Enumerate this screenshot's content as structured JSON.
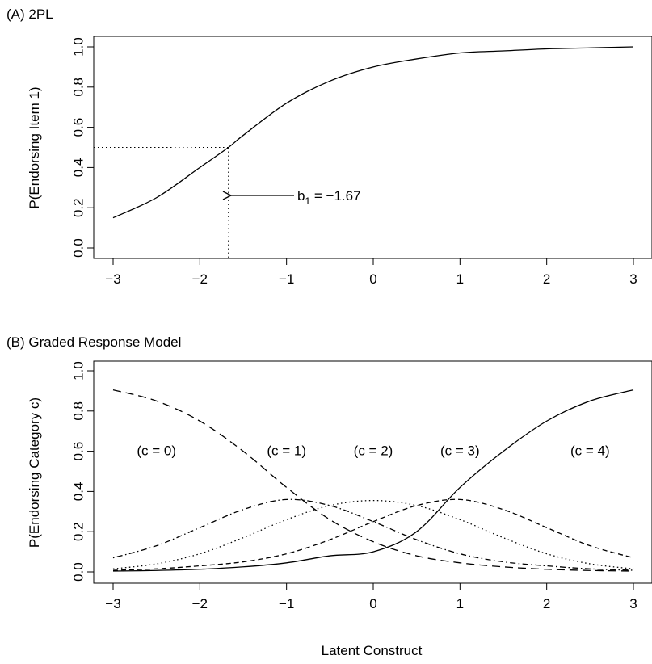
{
  "chart_data": [
    {
      "type": "line",
      "panel_label": "(A) 2PL",
      "ylabel": "P(Endorsing Item 1)",
      "xlabel": "",
      "xlim": [
        -3,
        3
      ],
      "ylim": [
        0,
        1
      ],
      "xticks": [
        "−3",
        "−2",
        "−1",
        "0",
        "1",
        "2",
        "3"
      ],
      "xtick_values": [
        -3,
        -2,
        -1,
        0,
        1,
        2,
        3
      ],
      "yticks": [
        "0.0",
        "0.2",
        "0.4",
        "0.6",
        "0.8",
        "1.0"
      ],
      "ytick_values": [
        0,
        0.2,
        0.4,
        0.6,
        0.8,
        1.0
      ],
      "grid": false,
      "series": [
        {
          "style": "solid",
          "x": [
            -3,
            -2.5,
            -2,
            -1.67,
            -1.5,
            -1,
            -0.5,
            0,
            0.5,
            1,
            1.5,
            2,
            2.5,
            3
          ],
          "y": [
            0.15,
            0.25,
            0.4,
            0.5,
            0.56,
            0.72,
            0.83,
            0.9,
            0.94,
            0.97,
            0.98,
            0.99,
            0.995,
            1.0
          ]
        }
      ],
      "reference": {
        "x": -1.67,
        "y": 0.5
      },
      "annotation": {
        "text_main": "b",
        "text_sub": "1",
        "text_value": " = −1.67"
      }
    },
    {
      "type": "line",
      "panel_label": "(B) Graded Response Model",
      "ylabel": "P(Endorsing Category c)",
      "xlabel": "Latent Construct",
      "xlim": [
        -3,
        3
      ],
      "ylim": [
        0,
        1
      ],
      "xticks": [
        "−3",
        "−2",
        "−1",
        "0",
        "1",
        "2",
        "3"
      ],
      "xtick_values": [
        -3,
        -2,
        -1,
        0,
        1,
        2,
        3
      ],
      "yticks": [
        "0.0",
        "0.2",
        "0.4",
        "0.6",
        "0.8",
        "1.0"
      ],
      "ytick_values": [
        0,
        0.2,
        0.4,
        0.6,
        0.8,
        1.0
      ],
      "grid": false,
      "series": [
        {
          "label": "(c = 0)",
          "label_pos": [
            -2.5,
            0.58
          ],
          "style": "longdash",
          "x": [
            -3,
            -2.5,
            -2,
            -1.5,
            -1,
            -0.5,
            0,
            0.5,
            1,
            1.5,
            2,
            2.5,
            3
          ],
          "y": [
            0.905,
            0.85,
            0.75,
            0.6,
            0.42,
            0.26,
            0.15,
            0.08,
            0.045,
            0.025,
            0.013,
            0.007,
            0.004
          ]
        },
        {
          "label": "(c = 1)",
          "label_pos": [
            -1.0,
            0.58
          ],
          "style": "dotdash",
          "x": [
            -3,
            -2.5,
            -2,
            -1.5,
            -1,
            -0.5,
            0,
            0.5,
            1,
            1.5,
            2,
            2.5,
            3
          ],
          "y": [
            0.07,
            0.13,
            0.22,
            0.31,
            0.36,
            0.33,
            0.25,
            0.16,
            0.09,
            0.05,
            0.03,
            0.015,
            0.008
          ]
        },
        {
          "label": "(c = 2)",
          "label_pos": [
            0.0,
            0.58
          ],
          "style": "dotted",
          "x": [
            -3,
            -2.5,
            -2,
            -1.5,
            -1,
            -0.5,
            0,
            0.5,
            1,
            1.5,
            2,
            2.5,
            3
          ],
          "y": [
            0.015,
            0.04,
            0.09,
            0.17,
            0.26,
            0.33,
            0.355,
            0.33,
            0.26,
            0.17,
            0.09,
            0.04,
            0.015
          ]
        },
        {
          "label": "(c = 3)",
          "label_pos": [
            1.0,
            0.58
          ],
          "style": "dashed",
          "x": [
            -3,
            -2.5,
            -2,
            -1.5,
            -1,
            -0.5,
            0,
            0.5,
            1,
            1.5,
            2,
            2.5,
            3
          ],
          "y": [
            0.008,
            0.015,
            0.03,
            0.05,
            0.09,
            0.16,
            0.25,
            0.33,
            0.36,
            0.31,
            0.22,
            0.13,
            0.07
          ]
        },
        {
          "label": "(c = 4)",
          "label_pos": [
            2.5,
            0.58
          ],
          "style": "solid",
          "x": [
            -3,
            -2.5,
            -2,
            -1.5,
            -1,
            -0.5,
            0,
            0.5,
            1,
            1.5,
            2,
            2.5,
            3
          ],
          "y": [
            0.004,
            0.007,
            0.013,
            0.025,
            0.045,
            0.08,
            0.1,
            0.2,
            0.42,
            0.6,
            0.75,
            0.85,
            0.905
          ]
        }
      ]
    }
  ]
}
